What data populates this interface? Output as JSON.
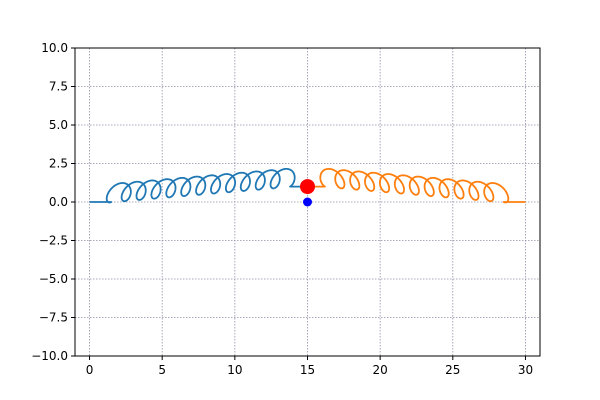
{
  "chart_data": {
    "type": "line",
    "title": "",
    "xlabel": "",
    "ylabel": "",
    "xlim": [
      -1,
      31
    ],
    "ylim": [
      -10,
      10
    ],
    "grid": true,
    "legend": "none",
    "x_ticks": [
      0,
      5,
      10,
      15,
      20,
      25,
      30
    ],
    "x_tick_labels": [
      "0",
      "5",
      "10",
      "15",
      "20",
      "25",
      "30"
    ],
    "y_ticks": [
      10.0,
      7.5,
      5.0,
      2.5,
      0.0,
      -2.5,
      -5.0,
      -7.5,
      -10.0
    ],
    "y_tick_labels": [
      "10.0",
      "7.5",
      "5.0",
      "2.5",
      "0.0",
      "−2.5",
      "−5.0",
      "−7.5",
      "−10.0"
    ],
    "series": [
      {
        "color": "#1f77b4",
        "attach_x": 0,
        "attach_y": 0,
        "coil_start_x": 1.5,
        "coil_end_x": 13.8,
        "end_x": 15,
        "end_y": 1.0,
        "loops": 12,
        "amplitude": 1.15
      },
      {
        "color": "#ff7f0e",
        "attach_x": 30,
        "attach_y": 0,
        "coil_start_x": 28.5,
        "coil_end_x": 16.2,
        "end_x": 15,
        "end_y": 1.0,
        "loops": 12,
        "amplitude": 1.15
      }
    ],
    "points": [
      {
        "name": "mass",
        "x": 15,
        "y": 1.0,
        "color": "#ff0000",
        "size": "large"
      },
      {
        "name": "equilibrium",
        "x": 15,
        "y": 0.0,
        "color": "#0000ff",
        "size": "small"
      }
    ]
  }
}
